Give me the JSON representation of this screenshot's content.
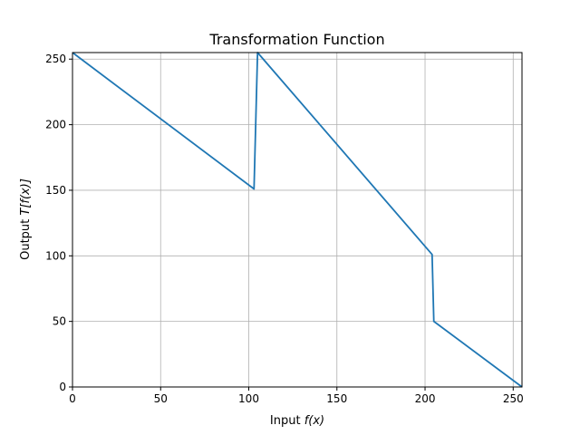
{
  "chart_data": {
    "type": "line",
    "title": "Transformation Function",
    "xlabel": {
      "prefix": "Input ",
      "math": "f(x)"
    },
    "ylabel": {
      "prefix": "Output ",
      "math": "T[f(x)]"
    },
    "xlim": [
      0,
      255
    ],
    "ylim": [
      0,
      255
    ],
    "xticks": [
      0,
      50,
      100,
      150,
      200,
      250
    ],
    "yticks": [
      0,
      50,
      100,
      150,
      200,
      250
    ],
    "grid": true,
    "series": [
      {
        "color": "#1f77b4",
        "x": [
          0,
          103,
          105,
          204,
          205,
          255
        ],
        "y": [
          255,
          151,
          255,
          101,
          50,
          0
        ]
      }
    ]
  }
}
